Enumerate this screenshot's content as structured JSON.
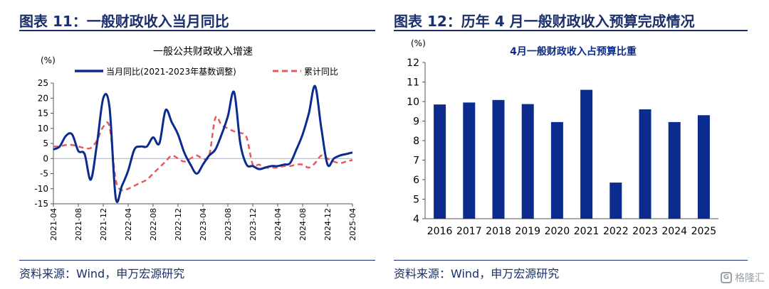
{
  "left_panel": {
    "figure_title": "图表 11：一般财政收入当月同比",
    "source": "资料来源：Wind，申万宏源研究"
  },
  "right_panel": {
    "figure_title": "图表 12：历年 4 月一般财政收入预算完成情况",
    "source": "资料来源：Wind，申万宏源研究"
  },
  "watermark": {
    "logo_text": "G",
    "text": "格隆汇"
  },
  "colors": {
    "navy": "#1a2f6b",
    "bar": "#0b2b8f",
    "red_dash": "#e8595a"
  },
  "chart_data": [
    {
      "type": "line",
      "title": "一般公共财政收入增速",
      "ylabel": "(%)",
      "ylim": [
        -15,
        25
      ],
      "yticks": [
        -15,
        -10,
        -5,
        0,
        5,
        10,
        15,
        20,
        25
      ],
      "x_ticklabels": [
        "2021-04",
        "2021-08",
        "2021-12",
        "2022-04",
        "2022-08",
        "2022-12",
        "2023-04",
        "2023-08",
        "2023-12",
        "2024-04",
        "2024-08",
        "2024-12",
        "2025-04"
      ],
      "x": [
        "2021-04",
        "2021-05",
        "2021-06",
        "2021-07",
        "2021-08",
        "2021-09",
        "2021-10",
        "2021-11",
        "2021-12",
        "2022-01",
        "2022-02",
        "2022-03",
        "2022-04",
        "2022-05",
        "2022-06",
        "2022-07",
        "2022-08",
        "2022-09",
        "2022-10",
        "2022-11",
        "2022-12",
        "2023-01",
        "2023-02",
        "2023-03",
        "2023-04",
        "2023-05",
        "2023-06",
        "2023-07",
        "2023-08",
        "2023-09",
        "2023-10",
        "2023-11",
        "2023-12",
        "2024-01",
        "2024-02",
        "2024-03",
        "2024-04",
        "2024-05",
        "2024-06",
        "2024-07",
        "2024-08",
        "2024-09",
        "2024-10",
        "2024-11",
        "2024-12",
        "2025-01",
        "2025-02",
        "2025-03",
        "2025-04"
      ],
      "legend_position": "top",
      "series": [
        {
          "name": "当月同比(2021-2023年基数调整)",
          "style": "solid",
          "color": "#0b2b8f",
          "values": [
            3,
            4,
            7.5,
            8,
            2.5,
            1.5,
            -7,
            5,
            20,
            17,
            -13,
            -9,
            -4,
            3,
            4,
            4,
            7,
            5,
            16,
            12,
            8,
            2,
            -2,
            -5,
            -2,
            1,
            3,
            8,
            14,
            22,
            5,
            -2,
            -2.5,
            -3.5,
            -3,
            -2.5,
            -2.5,
            -2,
            -1.5,
            3,
            8,
            15,
            24,
            10,
            -2,
            0,
            1,
            1.5,
            2
          ]
        },
        {
          "name": "累计同比",
          "style": "dashed",
          "color": "#e8595a",
          "values": [
            4,
            4,
            4.5,
            4.5,
            4,
            3.5,
            3.5,
            6,
            10.5,
            10.5,
            -7,
            -10.5,
            -10,
            -9,
            -8,
            -7,
            -5,
            -3,
            -1,
            1,
            0,
            -1,
            0,
            1,
            0,
            1,
            13.5,
            11,
            10,
            9,
            8.5,
            7,
            -2,
            -2,
            -3,
            -3,
            -3,
            -2.5,
            -2.5,
            -2,
            -2,
            -3,
            -1.5,
            1,
            0,
            -1,
            -1.5,
            -1,
            -0.5
          ]
        }
      ]
    },
    {
      "type": "bar",
      "title": "4月一般财政收入占预算比重",
      "ylabel": "(%)",
      "ylim": [
        4,
        12
      ],
      "yticks": [
        4,
        5,
        6,
        7,
        8,
        9,
        10,
        11,
        12
      ],
      "categories": [
        "2016",
        "2017",
        "2018",
        "2019",
        "2020",
        "2021",
        "2022",
        "2023",
        "2024",
        "2025"
      ],
      "values": [
        9.85,
        9.95,
        10.08,
        9.87,
        8.95,
        10.6,
        5.85,
        9.6,
        8.95,
        9.3
      ],
      "color": "#0b2b8f",
      "grid": false
    }
  ]
}
